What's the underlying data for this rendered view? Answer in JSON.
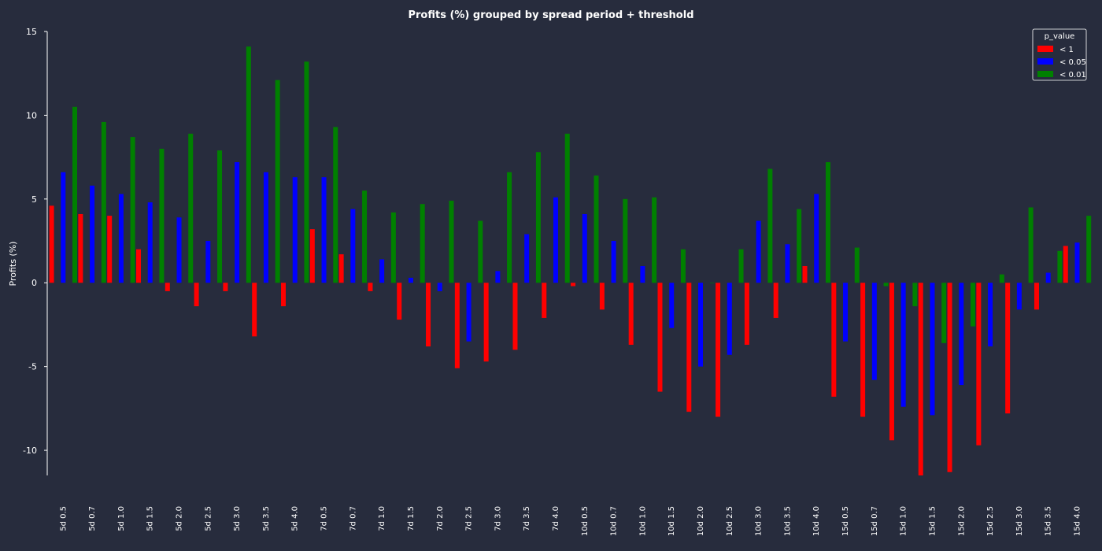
{
  "chart_data": {
    "type": "bar",
    "title": "Profits (%) grouped by spread period + threshold",
    "xlabel": "",
    "ylabel": "Profits (%)",
    "ylim": [
      -11.5,
      15
    ],
    "yticks": [
      -10,
      -5,
      0,
      5,
      10,
      15
    ],
    "grid": false,
    "legend": {
      "title": "p_value",
      "position": "top-right"
    },
    "categories": [
      "5d 0.5",
      "5d 0.7",
      "5d 1.0",
      "5d 1.5",
      "5d 2.0",
      "5d 2.5",
      "5d 3.0",
      "5d 3.5",
      "5d 4.0",
      "7d 0.5",
      "7d 0.7",
      "7d 1.0",
      "7d 1.5",
      "7d 2.0",
      "7d 2.5",
      "7d 3.0",
      "7d 3.5",
      "7d 4.0",
      "10d 0.5",
      "10d 0.7",
      "10d 1.0",
      "10d 1.5",
      "10d 2.0",
      "10d 2.5",
      "10d 3.0",
      "10d 3.5",
      "10d 4.0",
      "15d 0.5",
      "15d 0.7",
      "15d 1.0",
      "15d 1.5",
      "15d 2.0",
      "15d 2.5",
      "15d 3.0",
      "15d 3.5",
      "15d 4.0"
    ],
    "series": [
      {
        "name": "< 1",
        "color": "#ff0000",
        "values": [
          4.6,
          4.1,
          4.0,
          2.0,
          -0.5,
          -1.4,
          -0.5,
          -3.2,
          -1.4,
          3.2,
          1.7,
          -0.5,
          -2.2,
          -3.8,
          -5.1,
          -4.7,
          -4.0,
          -2.1,
          -0.2,
          -1.6,
          -3.7,
          -6.5,
          -7.7,
          -8.0,
          -3.7,
          -2.1,
          1.0,
          -6.8,
          -8.0,
          -9.4,
          -11.5,
          -11.3,
          -9.7,
          -7.8,
          -1.6,
          2.2
        ]
      },
      {
        "name": "< 0.05",
        "color": "#0000ff",
        "values": [
          6.6,
          5.8,
          5.3,
          4.8,
          3.9,
          2.5,
          7.2,
          6.6,
          6.3,
          6.3,
          4.4,
          1.4,
          0.3,
          -0.5,
          -3.5,
          0.7,
          2.9,
          5.1,
          4.1,
          2.5,
          1.0,
          -2.7,
          -5.0,
          -4.3,
          3.7,
          2.3,
          5.3,
          -3.5,
          -5.8,
          -7.4,
          -7.9,
          -6.1,
          -3.8,
          -1.6,
          0.6,
          2.4
        ]
      },
      {
        "name": "< 0.01",
        "color": "#008000",
        "values": [
          10.5,
          9.6,
          8.7,
          8.0,
          8.9,
          7.9,
          14.1,
          12.1,
          13.2,
          9.3,
          5.5,
          4.2,
          4.7,
          4.9,
          3.7,
          6.6,
          7.8,
          8.9,
          6.4,
          5.0,
          5.1,
          2.0,
          0.0,
          2.0,
          6.8,
          4.4,
          7.2,
          2.1,
          -0.2,
          -1.4,
          -3.6,
          -2.6,
          0.5,
          4.5,
          1.9,
          4.0
        ]
      }
    ]
  }
}
